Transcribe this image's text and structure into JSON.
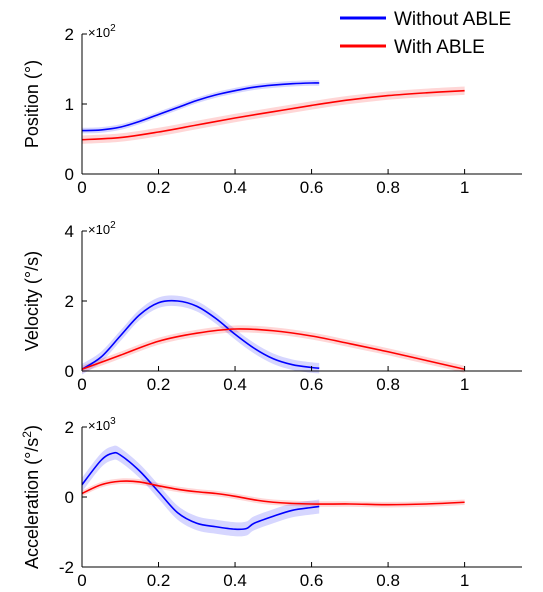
{
  "chart_data": {
    "type": "line",
    "legend": {
      "placement": "top-right",
      "entries": [
        {
          "label": "Without ABLE",
          "color": "#0000ff"
        },
        {
          "label": "With ABLE",
          "color": "#ff0000"
        }
      ]
    },
    "panels": [
      {
        "ylabel": "Position (°)",
        "multiplier": "×10",
        "multiplier_exp": "2",
        "ylim": [
          0,
          2
        ],
        "yticks": [
          "0",
          "1",
          "2"
        ],
        "xlim": [
          0,
          1.15
        ],
        "xticks": [
          "0",
          "0.2",
          "0.4",
          "0.6",
          "0.8",
          "1"
        ],
        "series": [
          {
            "name": "Without ABLE",
            "color": "#0000ff",
            "band": 0.04,
            "x": [
              0,
              0.05,
              0.1,
              0.15,
              0.2,
              0.25,
              0.3,
              0.35,
              0.4,
              0.45,
              0.5,
              0.55,
              0.6,
              0.62
            ],
            "y": [
              0.62,
              0.63,
              0.67,
              0.75,
              0.85,
              0.95,
              1.05,
              1.13,
              1.19,
              1.24,
              1.27,
              1.29,
              1.3,
              1.3
            ]
          },
          {
            "name": "With ABLE",
            "color": "#ff0000",
            "band": 0.06,
            "x": [
              0,
              0.1,
              0.2,
              0.3,
              0.4,
              0.5,
              0.6,
              0.7,
              0.8,
              0.9,
              1.0
            ],
            "y": [
              0.49,
              0.52,
              0.6,
              0.7,
              0.8,
              0.89,
              0.98,
              1.06,
              1.12,
              1.16,
              1.19
            ]
          }
        ]
      },
      {
        "ylabel": "Velocity (°/s)",
        "multiplier": "×10",
        "multiplier_exp": "2",
        "ylim": [
          0,
          4
        ],
        "yticks": [
          "0",
          "2",
          "4"
        ],
        "xlim": [
          0,
          1.15
        ],
        "xticks": [
          "0",
          "0.2",
          "0.4",
          "0.6",
          "0.8",
          "1"
        ],
        "series": [
          {
            "name": "Without ABLE",
            "color": "#0000ff",
            "band": 0.15,
            "x": [
              0,
              0.05,
              0.1,
              0.15,
              0.2,
              0.25,
              0.3,
              0.35,
              0.4,
              0.45,
              0.5,
              0.55,
              0.6,
              0.62
            ],
            "y": [
              0.05,
              0.4,
              1.0,
              1.6,
              1.95,
              2.0,
              1.85,
              1.5,
              1.05,
              0.65,
              0.35,
              0.18,
              0.1,
              0.08
            ]
          },
          {
            "name": "With ABLE",
            "color": "#ff0000",
            "band": 0.1,
            "x": [
              0,
              0.1,
              0.2,
              0.3,
              0.4,
              0.5,
              0.6,
              0.7,
              0.8,
              0.9,
              1.0
            ],
            "y": [
              0.05,
              0.45,
              0.85,
              1.08,
              1.2,
              1.15,
              1.0,
              0.78,
              0.55,
              0.3,
              0.05
            ]
          }
        ]
      },
      {
        "ylabel": "Acceleration (°/s",
        "ylabel_exp": "2",
        "ylabel_tail": ")",
        "multiplier": "×10",
        "multiplier_exp": "3",
        "ylim": [
          -2,
          2
        ],
        "yticks": [
          "-2",
          "0",
          "2"
        ],
        "xlim": [
          0,
          1.15
        ],
        "xticks": [
          "0",
          "0.2",
          "0.4",
          "0.6",
          "0.8",
          "1"
        ],
        "series": [
          {
            "name": "Without ABLE",
            "color": "#0000ff",
            "band": 0.2,
            "x": [
              0,
              0.05,
              0.08,
              0.1,
              0.15,
              0.2,
              0.25,
              0.3,
              0.35,
              0.4,
              0.43,
              0.45,
              0.5,
              0.55,
              0.6,
              0.62
            ],
            "y": [
              0.35,
              1.05,
              1.25,
              1.2,
              0.75,
              0.15,
              -0.45,
              -0.75,
              -0.85,
              -0.92,
              -0.9,
              -0.75,
              -0.55,
              -0.38,
              -0.3,
              -0.27
            ]
          },
          {
            "name": "With ABLE",
            "color": "#ff0000",
            "band": 0.08,
            "x": [
              0,
              0.05,
              0.1,
              0.15,
              0.2,
              0.25,
              0.3,
              0.35,
              0.4,
              0.45,
              0.5,
              0.6,
              0.7,
              0.8,
              0.9,
              1.0
            ],
            "y": [
              0.1,
              0.35,
              0.45,
              0.43,
              0.32,
              0.22,
              0.15,
              0.1,
              0.02,
              -0.08,
              -0.15,
              -0.2,
              -0.2,
              -0.22,
              -0.2,
              -0.15
            ]
          }
        ]
      }
    ]
  }
}
